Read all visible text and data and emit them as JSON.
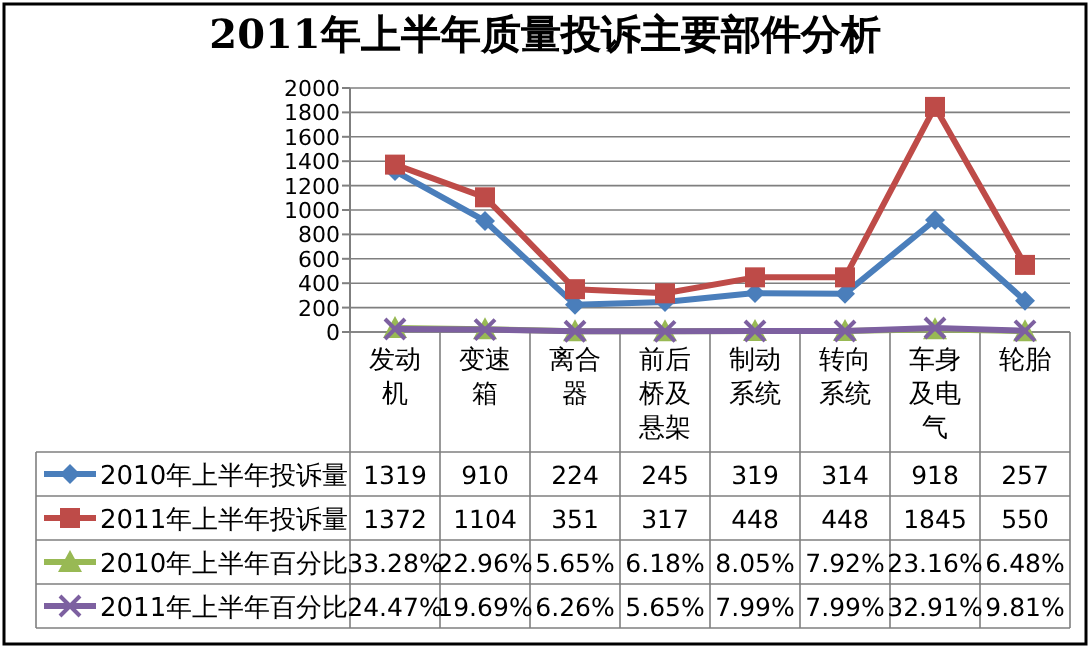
{
  "chart_data": {
    "type": "line",
    "title": "2011年上半年质量投诉主要部件分析",
    "categories": [
      "发动机",
      "变速箱",
      "离合器",
      "前后桥及悬架",
      "制动系统",
      "转向系统",
      "车身及电气",
      "轮胎"
    ],
    "series": [
      {
        "name": "2010年上半年投诉量",
        "color": "#4a7ebb",
        "marker": "diamond",
        "values": [
          1319,
          910,
          224,
          245,
          319,
          314,
          918,
          257
        ],
        "value_labels": [
          "1319",
          "910",
          "224",
          "245",
          "319",
          "314",
          "918",
          "257"
        ]
      },
      {
        "name": "2011年上半年投诉量",
        "color": "#be4b48",
        "marker": "square",
        "values": [
          1372,
          1104,
          351,
          317,
          448,
          448,
          1845,
          550
        ],
        "value_labels": [
          "1372",
          "1104",
          "351",
          "317",
          "448",
          "448",
          "1845",
          "550"
        ]
      },
      {
        "name": "2010年上半年百分比",
        "color": "#98b954",
        "marker": "triangle",
        "values": [
          33.28,
          22.96,
          5.65,
          6.18,
          8.05,
          7.92,
          23.16,
          6.48
        ],
        "value_labels": [
          "33.28%",
          "22.96%",
          "5.65%",
          "6.18%",
          "8.05%",
          "7.92%",
          "23.16%",
          "6.48%"
        ]
      },
      {
        "name": "2011年上半年百分比",
        "color": "#7d60a0",
        "marker": "cross",
        "values": [
          24.47,
          19.69,
          6.26,
          5.65,
          7.99,
          7.99,
          32.91,
          9.81
        ],
        "value_labels": [
          "24.47%",
          "19.69%",
          "6.26%",
          "5.65%",
          "7.99%",
          "7.99%",
          "32.91%",
          "9.81%"
        ]
      }
    ],
    "ylim": [
      0,
      2000
    ],
    "yticks": [
      0,
      200,
      400,
      600,
      800,
      1000,
      1200,
      1400,
      1600,
      1800,
      2000
    ],
    "grid": "y",
    "legend": "left"
  }
}
